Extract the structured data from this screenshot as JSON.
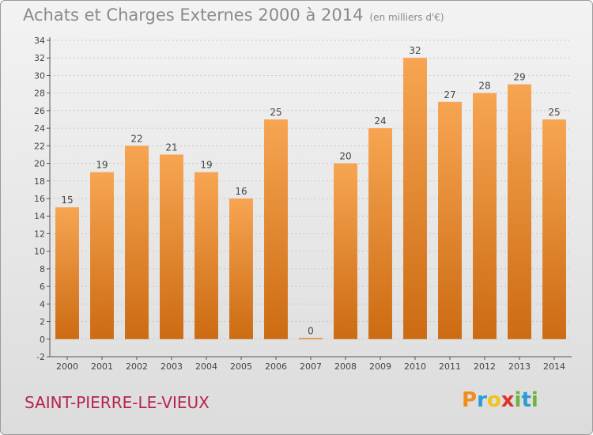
{
  "header": {
    "title": "Achats et Charges Externes 2000 à 2014",
    "unit": "(en milliers d'€)"
  },
  "commune": "SAINT-PIERRE-LE-VIEUX",
  "logo": {
    "letters": [
      {
        "char": "P",
        "color": "#f08c1e"
      },
      {
        "char": "r",
        "color": "#2b9ad6"
      },
      {
        "char": "o",
        "color": "#f0c419"
      },
      {
        "char": "x",
        "color": "#d8352a"
      },
      {
        "char": "i",
        "color": "#6cb33f"
      },
      {
        "char": "t",
        "color": "#2b9ad6"
      },
      {
        "char": "i",
        "color": "#6cb33f"
      }
    ]
  },
  "colors": {
    "bar_top": "#f7a552",
    "bar_bottom": "#cc6b12",
    "axis": "#555555",
    "grid": "#c8c8c8"
  },
  "chart_data": {
    "type": "bar",
    "title": "Achats et Charges Externes 2000 à 2014",
    "subtitle": "(en milliers d'€)",
    "categories": [
      "2000",
      "2001",
      "2002",
      "2003",
      "2004",
      "2005",
      "2006",
      "2007",
      "2008",
      "2009",
      "2010",
      "2011",
      "2012",
      "2013",
      "2014"
    ],
    "values": [
      15,
      19,
      22,
      21,
      19,
      16,
      25,
      0,
      20,
      24,
      32,
      27,
      28,
      29,
      25
    ],
    "ylim": [
      -2,
      34
    ],
    "yticks": [
      -2,
      0,
      2,
      4,
      6,
      8,
      10,
      12,
      14,
      16,
      18,
      20,
      22,
      24,
      26,
      28,
      30,
      32,
      34
    ],
    "grid": true,
    "data_labels": true
  }
}
